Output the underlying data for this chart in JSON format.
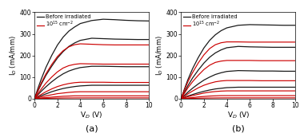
{
  "title_a": "(a)",
  "title_b": "(b)",
  "xlabel_a": "V$_D$ (V)",
  "xlabel_b": "V$_D$ (V)",
  "ylabel": "I$_D$ (mA/mm)",
  "legend_before": "Before irradiated",
  "legend_after": "10$^{15}$ cm$^{-2}$",
  "xlim": [
    0,
    10
  ],
  "ylim": [
    0,
    400
  ],
  "yticks": [
    0,
    100,
    200,
    300,
    400
  ],
  "xticks": [
    0,
    2,
    4,
    6,
    8,
    10
  ],
  "color_before": "#1a1a1a",
  "color_after": "#cc0000",
  "vd": [
    0,
    0.3,
    0.6,
    1.0,
    1.5,
    2.0,
    2.5,
    3.0,
    3.5,
    4.0,
    5.0,
    6.0,
    7.0,
    8.0,
    9.0,
    10.0
  ],
  "curves_a_before": [
    [
      0,
      48,
      92,
      145,
      200,
      248,
      285,
      313,
      332,
      348,
      362,
      368,
      366,
      363,
      361,
      360
    ],
    [
      0,
      35,
      68,
      108,
      150,
      188,
      218,
      242,
      258,
      270,
      280,
      278,
      276,
      275,
      274,
      274
    ],
    [
      0,
      18,
      35,
      55,
      78,
      98,
      115,
      128,
      137,
      144,
      150,
      150,
      149,
      148,
      148,
      148
    ],
    [
      0,
      7,
      14,
      22,
      32,
      40,
      47,
      52,
      56,
      59,
      62,
      62,
      62,
      62,
      62,
      62
    ]
  ],
  "curves_a_after": [
    [
      0,
      38,
      74,
      115,
      158,
      195,
      222,
      240,
      250,
      254,
      252,
      250,
      249,
      249,
      249,
      249
    ],
    [
      0,
      23,
      45,
      72,
      100,
      124,
      142,
      153,
      159,
      162,
      161,
      160,
      160,
      160,
      160,
      160
    ],
    [
      0,
      10,
      20,
      32,
      45,
      56,
      64,
      70,
      74,
      76,
      76,
      76,
      75,
      75,
      75,
      75
    ],
    [
      0,
      4,
      8,
      13,
      18,
      23,
      26,
      29,
      31,
      32,
      32,
      32,
      32,
      32,
      32,
      32
    ],
    [
      0,
      1.5,
      3,
      5,
      7,
      9,
      11,
      12,
      13,
      13,
      13,
      13,
      13,
      13,
      13,
      13
    ],
    [
      0,
      0.4,
      0.8,
      1.3,
      2,
      2.5,
      3,
      3.3,
      3.5,
      3.6,
      3.7,
      3.7,
      3.7,
      3.7,
      3.7,
      3.7
    ]
  ],
  "curves_b_before": [
    [
      0,
      45,
      88,
      138,
      190,
      235,
      270,
      296,
      315,
      328,
      340,
      343,
      342,
      341,
      340,
      340
    ],
    [
      0,
      30,
      60,
      95,
      132,
      165,
      192,
      212,
      226,
      236,
      242,
      240,
      239,
      238,
      238,
      238
    ],
    [
      0,
      15,
      30,
      48,
      68,
      86,
      100,
      112,
      120,
      126,
      130,
      129,
      128,
      128,
      127,
      127
    ],
    [
      0,
      6,
      12,
      19,
      27,
      34,
      40,
      45,
      48,
      51,
      53,
      53,
      53,
      53,
      53,
      53
    ]
  ],
  "curves_b_after": [
    [
      0,
      40,
      78,
      120,
      165,
      203,
      232,
      250,
      259,
      263,
      263,
      262,
      262,
      262,
      262,
      262
    ],
    [
      0,
      25,
      50,
      78,
      108,
      135,
      155,
      168,
      174,
      177,
      177,
      177,
      176,
      176,
      176,
      176
    ],
    [
      0,
      11,
      22,
      35,
      50,
      62,
      71,
      78,
      82,
      84,
      84,
      84,
      83,
      83,
      83,
      83
    ],
    [
      0,
      4,
      9,
      14,
      20,
      26,
      30,
      33,
      35,
      36,
      36,
      36,
      36,
      36,
      36,
      36
    ],
    [
      0,
      1.5,
      3,
      5,
      8,
      10,
      12,
      13,
      14,
      14,
      14,
      14,
      14,
      14,
      14,
      14
    ],
    [
      0,
      0.4,
      0.8,
      1.3,
      2,
      2.5,
      3,
      3.3,
      3.5,
      3.6,
      3.7,
      3.7,
      3.7,
      3.7,
      3.7,
      3.7
    ]
  ]
}
